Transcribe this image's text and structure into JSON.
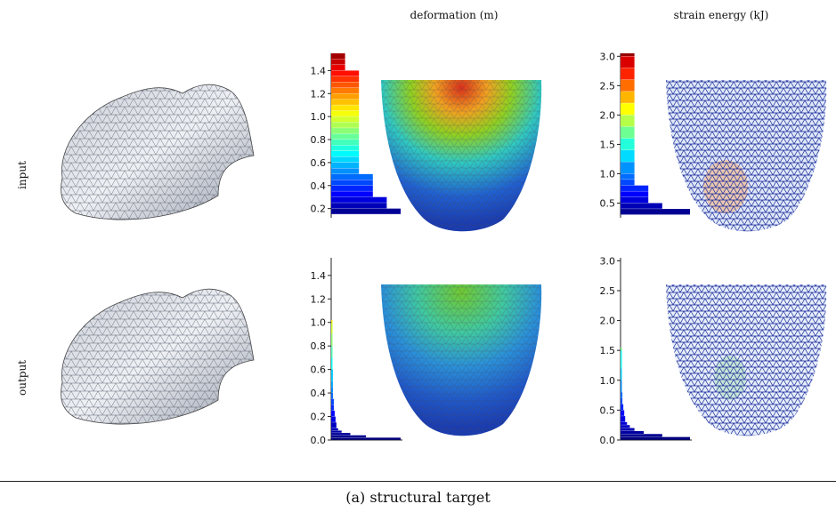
{
  "columns": {
    "deformation": "deformation (m)",
    "strain": "strain energy (kJ)"
  },
  "rows": {
    "input": "input",
    "output": "output"
  },
  "caption": "(a) structural target",
  "chart_data": [
    {
      "type": "bar",
      "name_ref": "input-deformation",
      "ylim": [
        0.12,
        1.55
      ],
      "yticks": [
        0.2,
        0.4,
        0.6,
        0.8,
        1.0,
        1.2,
        1.4
      ],
      "ytick_labels": [
        "0.2",
        "0.4",
        "0.6",
        "0.8",
        "1.0",
        "1.2",
        "1.4"
      ],
      "orientation": "horizontal-histogram",
      "bins": [
        0.15,
        0.2,
        0.25,
        0.3,
        0.35,
        0.4,
        0.45,
        0.5,
        0.55,
        0.6,
        0.65,
        0.7,
        0.75,
        0.8,
        0.85,
        0.9,
        0.95,
        1.0,
        1.05,
        1.1,
        1.15,
        1.2,
        1.25,
        1.3,
        1.35,
        1.4,
        1.45,
        1.5
      ],
      "counts": [
        5,
        4,
        4,
        3,
        3,
        3,
        3,
        2,
        2,
        2,
        2,
        2,
        2,
        2,
        2,
        2,
        2,
        2,
        2,
        2,
        2,
        2,
        2,
        2,
        2,
        1,
        1,
        1
      ]
    },
    {
      "type": "bar",
      "name_ref": "input-strain",
      "ylim": [
        0.25,
        3.05
      ],
      "yticks": [
        0.5,
        1.0,
        1.5,
        2.0,
        2.5,
        3.0
      ],
      "ytick_labels": [
        "0.5",
        "1.0",
        "1.5",
        "2.0",
        "2.5",
        "3.0"
      ],
      "orientation": "horizontal-histogram",
      "bins": [
        0.3,
        0.4,
        0.5,
        0.6,
        0.7,
        0.8,
        0.9,
        1.0,
        1.2,
        1.4,
        1.6,
        1.8,
        2.0,
        2.2,
        2.4,
        2.6,
        2.8,
        3.0
      ],
      "counts": [
        5,
        3,
        2,
        2,
        2,
        1,
        1,
        1,
        1,
        1,
        1,
        1,
        1,
        1,
        1,
        1,
        1,
        1
      ]
    },
    {
      "type": "bar",
      "name_ref": "output-deformation",
      "ylim": [
        0.0,
        1.55
      ],
      "yticks": [
        0.0,
        0.2,
        0.4,
        0.6,
        0.8,
        1.0,
        1.2,
        1.4
      ],
      "ytick_labels": [
        "0.0",
        "0.2",
        "0.4",
        "0.6",
        "0.8",
        "1.0",
        "1.2",
        "1.4"
      ],
      "orientation": "horizontal-histogram",
      "bins": [
        0.0,
        0.02,
        0.04,
        0.06,
        0.08,
        0.1,
        0.15,
        0.2,
        0.25,
        0.3,
        0.35,
        0.4,
        0.45,
        0.5,
        0.6,
        0.7,
        0.8,
        0.9,
        1.0
      ],
      "counts": [
        80,
        40,
        22,
        12,
        8,
        6,
        5,
        4,
        3,
        3,
        2,
        2,
        2,
        2,
        1,
        1,
        1,
        1,
        1
      ]
    },
    {
      "type": "bar",
      "name_ref": "output-strain",
      "ylim": [
        0.0,
        3.05
      ],
      "yticks": [
        0.0,
        0.5,
        1.0,
        1.5,
        2.0,
        2.5,
        3.0
      ],
      "ytick_labels": [
        "0.0",
        "0.5",
        "1.0",
        "1.5",
        "2.0",
        "2.5",
        "3.0"
      ],
      "orientation": "horizontal-histogram",
      "bins": [
        0.0,
        0.05,
        0.1,
        0.15,
        0.2,
        0.25,
        0.3,
        0.4,
        0.5,
        0.6,
        0.7,
        0.8,
        1.0,
        1.2,
        1.5
      ],
      "counts": [
        75,
        45,
        25,
        15,
        10,
        7,
        5,
        4,
        3,
        2,
        2,
        1,
        1,
        1,
        1
      ]
    }
  ]
}
